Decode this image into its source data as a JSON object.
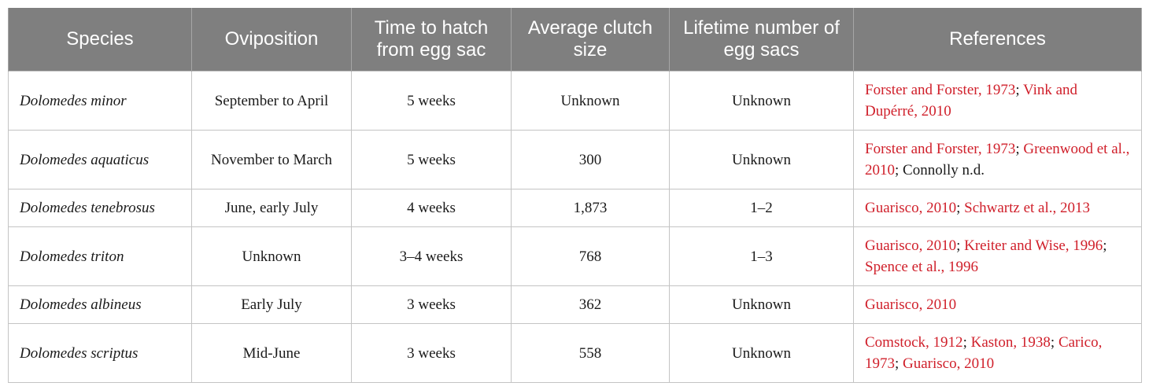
{
  "headers": [
    "Species",
    "Oviposition",
    "Time to hatch from egg sac",
    "Average clutch size",
    "Lifetime number of egg sacs",
    "References"
  ],
  "rows": [
    {
      "species": "Dolomedes minor",
      "oviposition": "September to April",
      "hatch": "5 weeks",
      "clutch": "Unknown",
      "sacs": "Unknown",
      "refs": [
        {
          "text": "Forster and Forster, 1973",
          "link": true
        },
        {
          "text": "; ",
          "link": false
        },
        {
          "text": "Vink and Dupérré, 2010",
          "link": true
        }
      ]
    },
    {
      "species": "Dolomedes aquaticus",
      "oviposition": "November to March",
      "hatch": "5 weeks",
      "clutch": "300",
      "sacs": "Unknown",
      "refs": [
        {
          "text": "Forster and Forster, 1973",
          "link": true
        },
        {
          "text": "; ",
          "link": false
        },
        {
          "text": "Greenwood et al., 2010",
          "link": true
        },
        {
          "text": "; Connolly n.d.",
          "link": false
        }
      ]
    },
    {
      "species": "Dolomedes tenebrosus",
      "oviposition": "June, early July",
      "hatch": "4 weeks",
      "clutch": "1,873",
      "sacs": "1–2",
      "refs": [
        {
          "text": "Guarisco, 2010",
          "link": true
        },
        {
          "text": "; ",
          "link": false
        },
        {
          "text": "Schwartz et al., 2013",
          "link": true
        }
      ]
    },
    {
      "species": "Dolomedes triton",
      "oviposition": "Unknown",
      "hatch": "3–4 weeks",
      "clutch": "768",
      "sacs": "1–3",
      "refs": [
        {
          "text": "Guarisco, 2010",
          "link": true
        },
        {
          "text": "; ",
          "link": false
        },
        {
          "text": "Kreiter and Wise, 1996",
          "link": true
        },
        {
          "text": "; ",
          "link": false
        },
        {
          "text": "Spence et al., 1996",
          "link": true
        }
      ]
    },
    {
      "species": "Dolomedes albineus",
      "oviposition": "Early July",
      "hatch": "3 weeks",
      "clutch": "362",
      "sacs": "Unknown",
      "refs": [
        {
          "text": "Guarisco, 2010",
          "link": true
        }
      ]
    },
    {
      "species": "Dolomedes scriptus",
      "oviposition": "Mid-June",
      "hatch": "3 weeks",
      "clutch": "558",
      "sacs": "Unknown",
      "refs": [
        {
          "text": "Comstock, 1912",
          "link": true
        },
        {
          "text": "; ",
          "link": false
        },
        {
          "text": "Kaston, 1938",
          "link": true
        },
        {
          "text": "; ",
          "link": false
        },
        {
          "text": "Carico, 1973",
          "link": true
        },
        {
          "text": "; ",
          "link": false
        },
        {
          "text": "Guarisco, 2010",
          "link": true
        }
      ]
    }
  ],
  "colors": {
    "header_bg": "#7f7f7f",
    "link": "#d0202b",
    "border": "#c4c4c4"
  }
}
